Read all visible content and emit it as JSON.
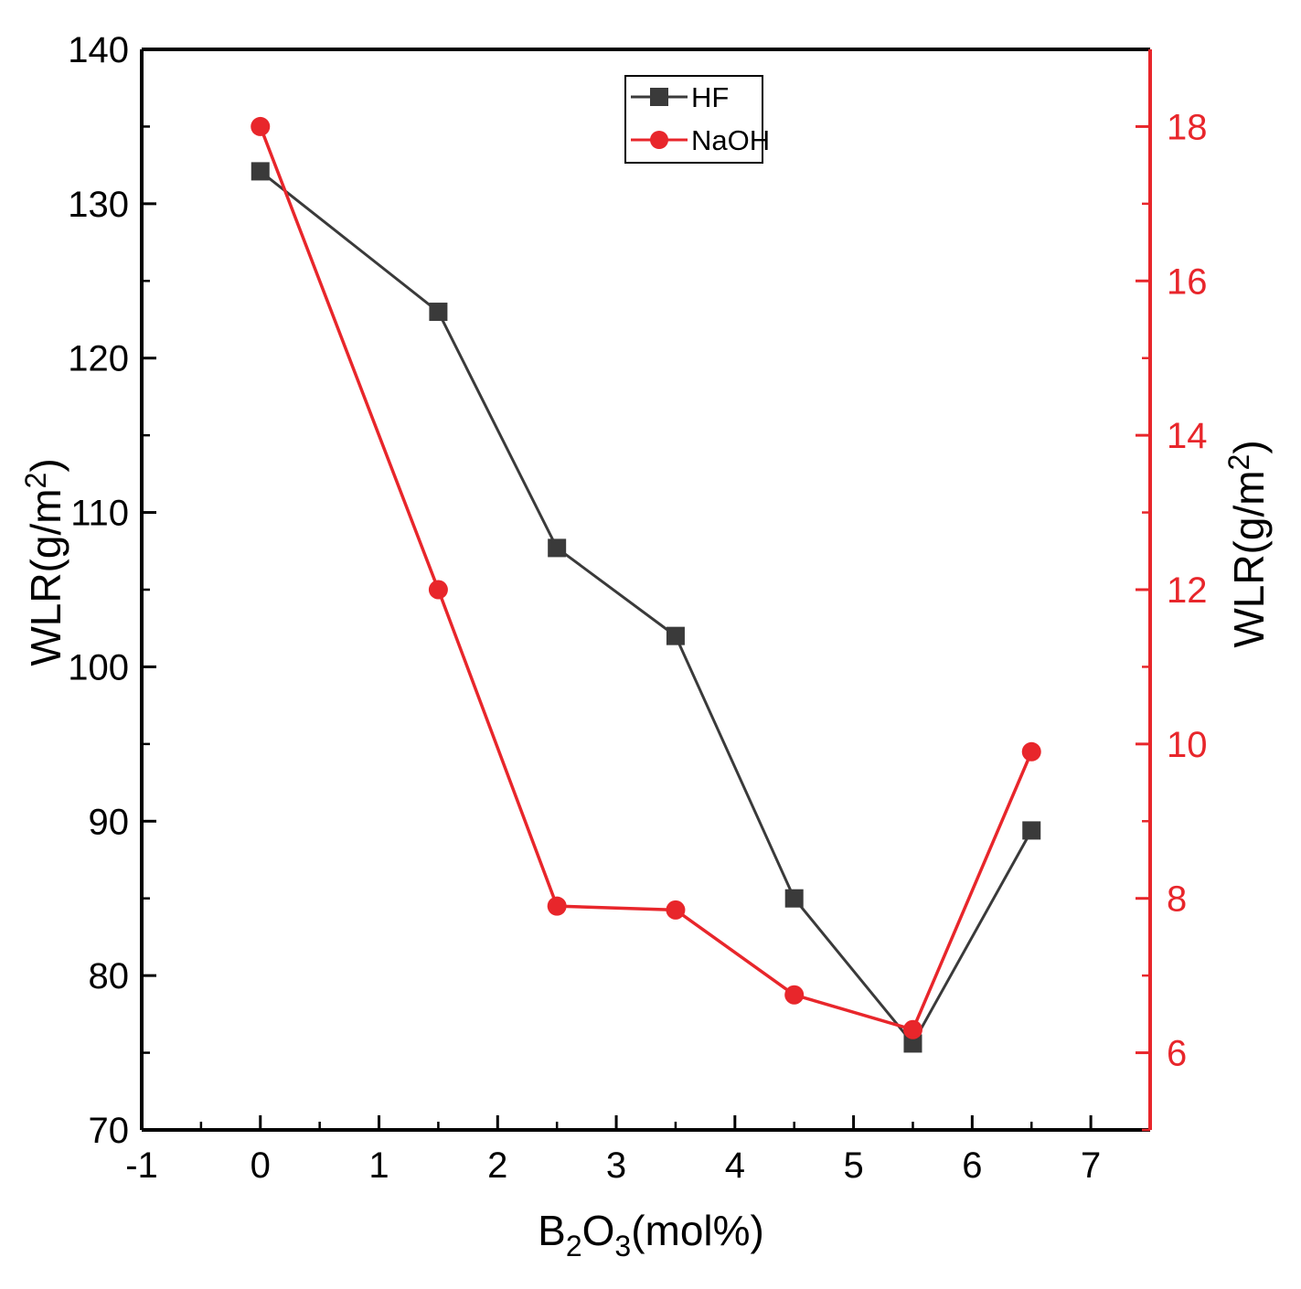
{
  "chart_data": {
    "type": "line",
    "x_axis": {
      "label_main": "B",
      "label_sub1": "2",
      "label_mid": "O",
      "label_sub2": "3",
      "label_tail": "(mol%)",
      "range": [
        -1,
        7.5
      ],
      "ticks": [
        -1,
        0,
        1,
        2,
        3,
        4,
        5,
        6,
        7
      ],
      "tick_labels": [
        "-1",
        "0",
        "1",
        "2",
        "3",
        "4",
        "5",
        "6",
        "7"
      ]
    },
    "y_axis_left": {
      "label_main": "WLR(g/m",
      "label_sup": "2",
      "label_tail": ")",
      "range": [
        70,
        140
      ],
      "ticks": [
        70,
        80,
        90,
        100,
        110,
        120,
        130,
        140
      ],
      "tick_labels": [
        "70",
        "80",
        "90",
        "100",
        "110",
        "120",
        "130",
        "140"
      ],
      "color": "#000000"
    },
    "y_axis_right": {
      "label_main": "WLR(g/m",
      "label_sup": "2",
      "label_tail": ")",
      "range": [
        5,
        19
      ],
      "ticks": [
        6,
        8,
        10,
        12,
        14,
        16,
        18
      ],
      "tick_labels": [
        "6",
        "8",
        "10",
        "12",
        "14",
        "16",
        "18"
      ],
      "color": "#e8262b"
    },
    "series": [
      {
        "name": "HF",
        "axis": "left",
        "marker": "square",
        "color": "#3a3a3a",
        "x": [
          0,
          1.5,
          2.5,
          3.5,
          4.5,
          5.5,
          6.5
        ],
        "y": [
          132.1,
          123,
          107.7,
          102,
          85,
          75.6,
          89.4
        ]
      },
      {
        "name": "NaOH",
        "axis": "right",
        "marker": "circle",
        "color": "#e8262b",
        "x": [
          0,
          1.5,
          2.5,
          3.5,
          4.5,
          5.5,
          6.5
        ],
        "y": [
          18,
          12,
          7.9,
          7.85,
          6.75,
          6.3,
          9.9
        ]
      }
    ],
    "legend": {
      "entries": [
        "HF",
        "NaOH"
      ],
      "placement": "top-center"
    }
  }
}
